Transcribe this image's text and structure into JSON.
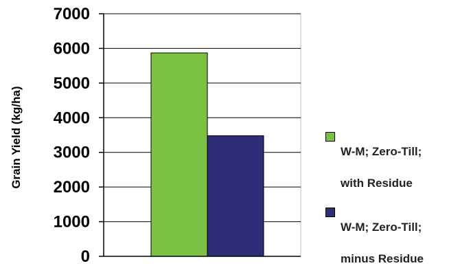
{
  "chart_data": {
    "type": "bar",
    "title": "",
    "xlabel": "",
    "ylabel": "Grain Yield (kg/ha)",
    "ylim": [
      0,
      7000
    ],
    "yticks": [
      0,
      1000,
      2000,
      3000,
      4000,
      5000,
      6000,
      7000
    ],
    "grid": true,
    "legend_position": "right",
    "categories": [
      ""
    ],
    "series": [
      {
        "name": "W-M; Zero-Till; with Residue",
        "values": [
          5870
        ],
        "color": "#7bc142"
      },
      {
        "name": "W-M; Zero-Till; minus Residue",
        "values": [
          3480
        ],
        "color": "#2e2e78"
      }
    ]
  },
  "legend": {
    "items": [
      {
        "line1": "W-M; Zero-Till;",
        "line2": "with Residue",
        "color": "#7bc142"
      },
      {
        "line1": "W-M; Zero-Till;",
        "line2": "minus Residue",
        "color": "#2e2e78"
      }
    ]
  }
}
